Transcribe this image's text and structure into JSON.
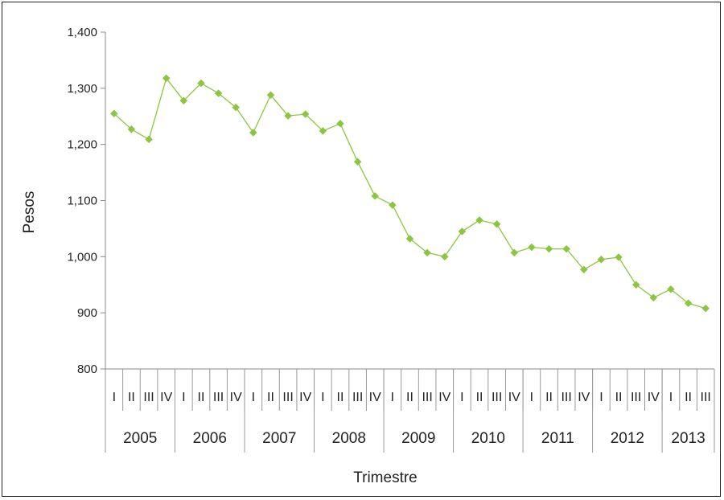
{
  "chart_data": {
    "type": "line",
    "title": "",
    "xlabel": "Trimestre",
    "ylabel": "Pesos",
    "ylim": [
      800,
      1400
    ],
    "yticks": [
      800,
      900,
      1000,
      1100,
      1200,
      1300,
      1400
    ],
    "ytick_labels": [
      "800",
      "900",
      "1,000",
      "1,100",
      "1,200",
      "1,300",
      "1,400"
    ],
    "grid": false,
    "legend": "none",
    "color": "#8cc63f",
    "years": [
      {
        "label": "2005",
        "quarters": [
          "I",
          "II",
          "III",
          "IV"
        ]
      },
      {
        "label": "2006",
        "quarters": [
          "I",
          "II",
          "III",
          "IV"
        ]
      },
      {
        "label": "2007",
        "quarters": [
          "I",
          "II",
          "III",
          "IV"
        ]
      },
      {
        "label": "2008",
        "quarters": [
          "I",
          "II",
          "III",
          "IV"
        ]
      },
      {
        "label": "2009",
        "quarters": [
          "I",
          "II",
          "III",
          "IV"
        ]
      },
      {
        "label": "2010",
        "quarters": [
          "I",
          "II",
          "III",
          "IV"
        ]
      },
      {
        "label": "2011",
        "quarters": [
          "I",
          "II",
          "III",
          "IV"
        ]
      },
      {
        "label": "2012",
        "quarters": [
          "I",
          "II",
          "III",
          "IV"
        ]
      },
      {
        "label": "2013",
        "quarters": [
          "I",
          "II",
          "III"
        ]
      }
    ],
    "series": [
      {
        "values": [
          1255,
          1227,
          1209,
          1318,
          1278,
          1309,
          1291,
          1266,
          1221,
          1288,
          1251,
          1254,
          1224,
          1237,
          1169,
          1108,
          1092,
          1032,
          1007,
          1000,
          1045,
          1065,
          1058,
          1007,
          1017,
          1014,
          1014,
          977,
          995,
          999,
          950,
          927,
          942,
          917,
          908
        ]
      }
    ]
  }
}
